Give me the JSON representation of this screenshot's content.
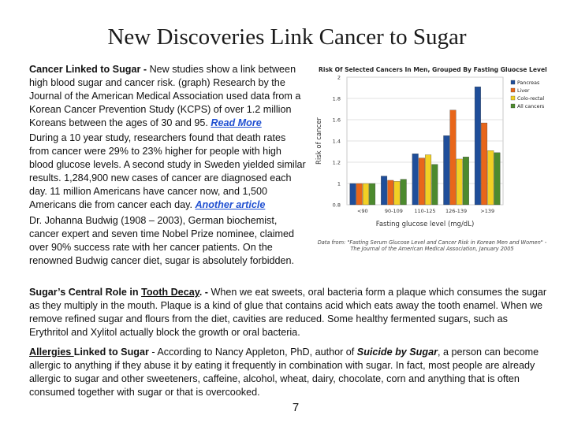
{
  "slide": {
    "title": "New Discoveries Link Cancer to Sugar",
    "page_number": "7"
  },
  "p1": {
    "heading": "Cancer Linked to Sugar - ",
    "body": "New studies show a link between high blood sugar and cancer risk. (graph) Research by the Journal of the American Medical Association used data from a Korean Cancer Prevention Study (KCPS) of over 1.2 million Koreans between the ages of 30 and 95. ",
    "link": "Read More"
  },
  "p2": {
    "body": "During a 10 year study, researchers found that death rates from cancer were 29% to 23% higher for people with high blood glucose levels. A second study in Sweden yielded similar results. 1,284,900 new cases of cancer are diagnosed each day. 11 million Americans have cancer now, and 1,500 Americans die from cancer each day. ",
    "link": "Another article"
  },
  "p3": {
    "body": "Dr. Johanna Budwig (1908 – 2003), German biochemist, cancer expert and seven time Nobel Prize nominee, claimed over 90% success rate with her cancer patients. On the renowned Budwig cancer diet, sugar is absolutely forbidden."
  },
  "p4": {
    "heading_a": "Sugar’s Central Role in ",
    "heading_link": "Tooth Decay",
    "heading_b": ".  - ",
    "body": "When we eat sweets, oral bacteria form a plaque which consumes the sugar as they multiply in the mouth. Plaque is a kind of glue that contains acid which eats away the tooth enamel. When we remove refined sugar and flours from the diet, cavities are reduced. Some healthy fermented sugars, such as Erythritol and Xylitol actually block the growth or oral bacteria."
  },
  "p5": {
    "heading_link": "Allergies ",
    "heading_b": "Linked to Sugar",
    "body_a": " - According to Nancy Appleton, PhD, author of ",
    "book": "Suicide by Sugar",
    "body_b": ", a person can become allergic to anything if they abuse it by eating it frequently in combination with sugar. In fact, most people are already allergic to sugar and other sweeteners, caffeine, alcohol, wheat, dairy, chocolate, corn and anything that is often consumed together with sugar or that is overcooked."
  },
  "chart_data": {
    "type": "bar",
    "title": "Risk Of Selected Cancers In Men, Grouped By Fasting Gluocse Level",
    "xlabel": "Fasting glucose level (mg/dL)",
    "ylabel": "Risk of cancer",
    "ylim": [
      0.8,
      2
    ],
    "yticks": [
      "0.8",
      "1",
      "1.2",
      "1.4",
      "1.6",
      "1.8",
      "2"
    ],
    "categories": [
      "<90",
      "90-109",
      "110-125",
      "126-139",
      ">139"
    ],
    "series": [
      {
        "name": "Pancreas",
        "color": "#1f4e9a",
        "values": [
          1.0,
          1.07,
          1.28,
          1.45,
          1.91
        ]
      },
      {
        "name": "Liver",
        "color": "#e8661a",
        "values": [
          1.0,
          1.03,
          1.24,
          1.69,
          1.57
        ]
      },
      {
        "name": "Colo-rectal",
        "color": "#f2d024",
        "values": [
          1.0,
          1.02,
          1.27,
          1.23,
          1.31
        ]
      },
      {
        "name": "All cancers",
        "color": "#4c8a2e",
        "values": [
          1.0,
          1.04,
          1.18,
          1.25,
          1.29
        ]
      }
    ],
    "grid": true,
    "legend": "right",
    "source": "Data from: \"Fasting Serum Glucose Level and Cancer Risk in Korean Men and Women\" - The Journal of the American Medical Association, January 2005"
  }
}
